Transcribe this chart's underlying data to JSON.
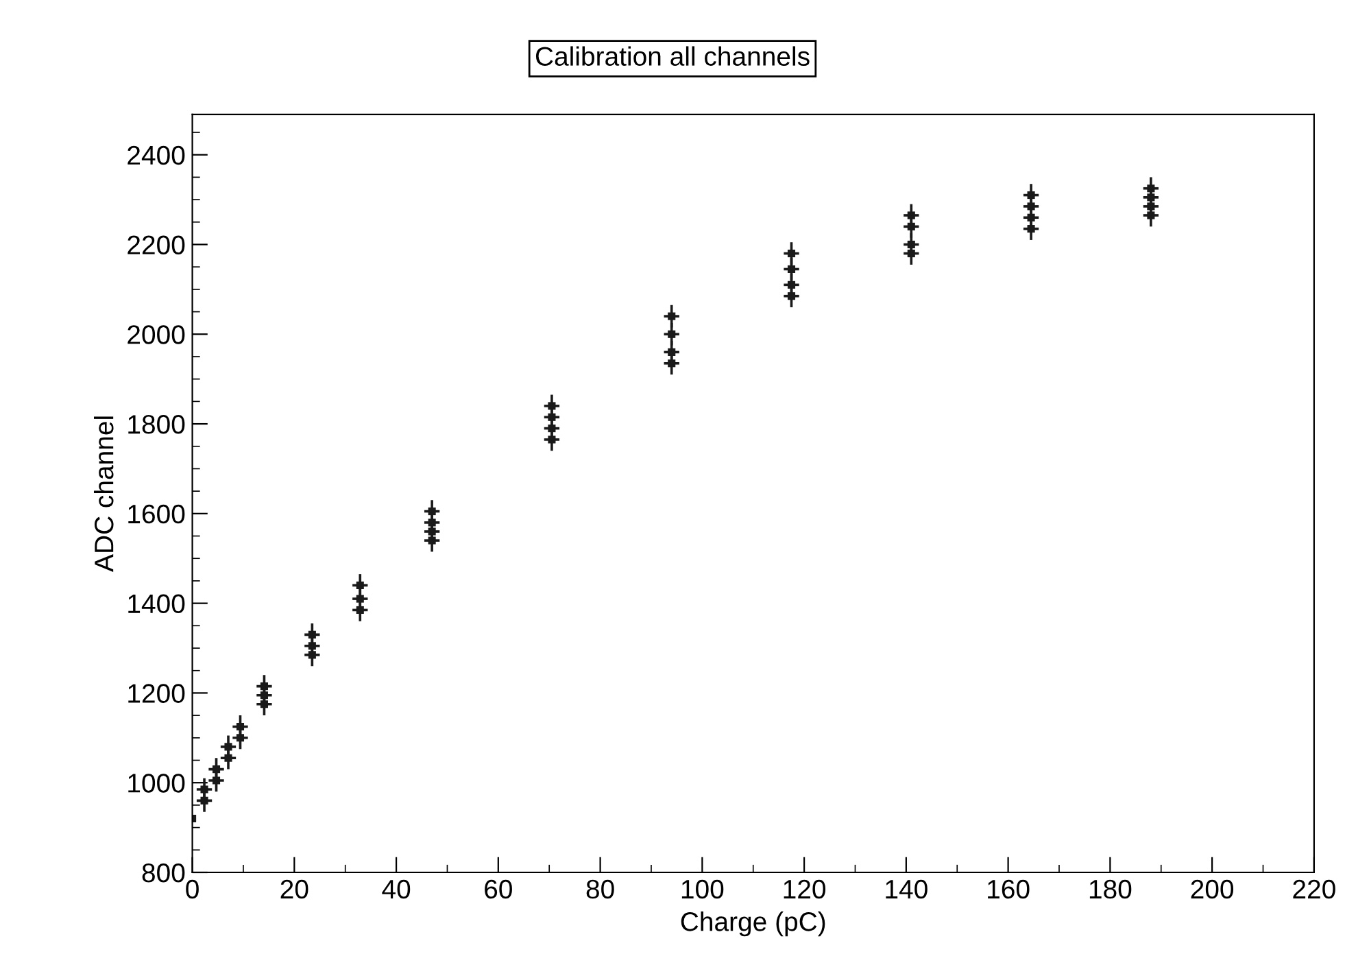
{
  "chart_data": {
    "type": "scatter",
    "title": "Calibration all channels",
    "xlabel": "Charge (pC)",
    "ylabel": "ADC channel",
    "xlim": [
      0,
      220
    ],
    "xticks": [
      0,
      20,
      40,
      60,
      80,
      100,
      120,
      140,
      160,
      180,
      200,
      220
    ],
    "ylim": [
      800,
      2490
    ],
    "yticks": [
      800,
      1000,
      1200,
      1400,
      1600,
      1800,
      2000,
      2200,
      2400
    ],
    "grid": false,
    "legend": false,
    "marker": "square",
    "series": [
      {
        "color": "#1a1a1a",
        "x": [
          0,
          2.35,
          2.35,
          4.7,
          4.7,
          7.05,
          7.05,
          9.4,
          9.4,
          14.1,
          14.1,
          14.1,
          23.5,
          23.5,
          23.5,
          32.9,
          32.9,
          32.9,
          47,
          47,
          47,
          47,
          70.5,
          70.5,
          70.5,
          70.5,
          94,
          94,
          94,
          94,
          117.5,
          117.5,
          117.5,
          117.5,
          141,
          141,
          141,
          141,
          164.5,
          164.5,
          164.5,
          164.5,
          188,
          188,
          188,
          188
        ],
        "values": [
          920,
          960,
          985,
          1005,
          1030,
          1055,
          1080,
          1100,
          1125,
          1175,
          1195,
          1215,
          1285,
          1305,
          1330,
          1385,
          1410,
          1440,
          1540,
          1560,
          1580,
          1605,
          1765,
          1790,
          1815,
          1840,
          1935,
          1960,
          2000,
          2040,
          2085,
          2110,
          2145,
          2180,
          2180,
          2200,
          2240,
          2265,
          2235,
          2260,
          2285,
          2310,
          2265,
          2285,
          2305,
          2325
        ],
        "errors": [
          null,
          25,
          25,
          25,
          25,
          25,
          25,
          25,
          25,
          25,
          25,
          25,
          25,
          25,
          25,
          25,
          25,
          25,
          25,
          25,
          25,
          25,
          25,
          25,
          25,
          25,
          25,
          25,
          25,
          25,
          25,
          25,
          25,
          25,
          25,
          25,
          25,
          25,
          25,
          25,
          25,
          25,
          25,
          25,
          25,
          25
        ],
        "xerrors": [
          null,
          1.5,
          1.5,
          1.5,
          1.5,
          1.5,
          1.5,
          1.5,
          1.5,
          1.5,
          1.5,
          1.5,
          1.5,
          1.5,
          1.5,
          1.5,
          1.5,
          1.5,
          1.5,
          1.5,
          1.5,
          1.5,
          1.5,
          1.5,
          1.5,
          1.5,
          1.5,
          1.5,
          1.5,
          1.5,
          1.5,
          1.5,
          1.5,
          1.5,
          1.5,
          1.5,
          1.5,
          1.5,
          1.5,
          1.5,
          1.5,
          1.5,
          1.5,
          1.5,
          1.5,
          1.5
        ]
      }
    ]
  }
}
